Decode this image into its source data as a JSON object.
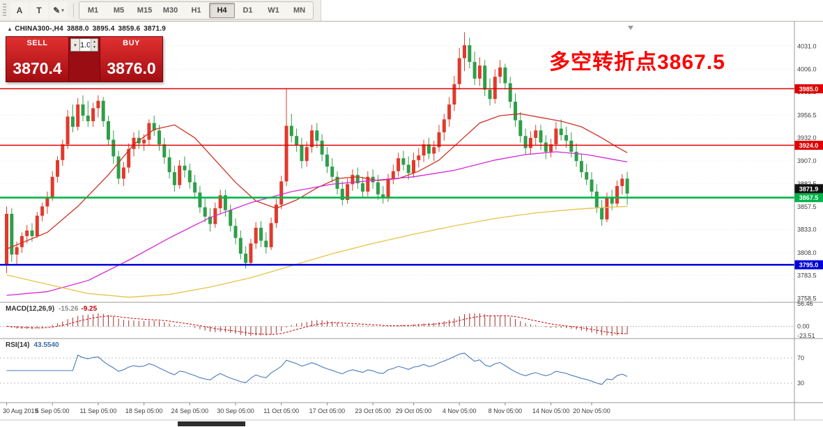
{
  "toolbar": {
    "tool_buttons": [
      {
        "name": "cursor-annotate-button",
        "glyph": "A",
        "dropdown": false
      },
      {
        "name": "text-label-button",
        "glyph": "T",
        "dropdown": false
      },
      {
        "name": "draw-objects-button",
        "glyph": "✎",
        "dropdown": true
      }
    ],
    "timeframes": [
      "M1",
      "M5",
      "M15",
      "M30",
      "H1",
      "H4",
      "D1",
      "W1",
      "MN"
    ],
    "active": "H4"
  },
  "symbol_header": {
    "collapse_icon": "▴",
    "symbol": "CHINA300-,H4",
    "open": "3888.0",
    "high": "3895.4",
    "low": "3859.6",
    "close": "3871.9"
  },
  "trade_panel": {
    "sell_label": "SELL",
    "buy_label": "BUY",
    "volume": "1.00",
    "sell_price": "3870.4",
    "buy_price": "3876.0"
  },
  "annotation": {
    "text": "多空转折点3867.5",
    "color": "#ff0000"
  },
  "chart_data": {
    "type": "candlestick",
    "title": "CHINA300-,H4",
    "colors": {
      "bull": "#e03a2c",
      "bear": "#2f9e49",
      "grid": "#e6e6e6",
      "axis_text": "#3c3c3c"
    },
    "y_range": [
      3756,
      4056
    ],
    "y_ticks": [
      "4031.0",
      "4006.0",
      "3981.5",
      "3956.5",
      "3932.0",
      "3907.0",
      "3882.5",
      "3857.5",
      "3833.0",
      "3808.0",
      "3783.5",
      "3758.5"
    ],
    "hlines": [
      {
        "price": 3985.0,
        "label": "3985.0",
        "color": "#e00000",
        "width": 1.5
      },
      {
        "price": 3924.0,
        "label": "3924.0",
        "color": "#e00000",
        "width": 1.5
      },
      {
        "price": 3867.5,
        "label": "3867.5",
        "color": "#00b44a",
        "width": 2.6
      },
      {
        "price": 3795.0,
        "label": "3795.0",
        "color": "#0000d6",
        "width": 2.6
      }
    ],
    "price_tag": {
      "price": 3871.9,
      "label": "3871.9",
      "color": "#111111"
    },
    "x_labels": [
      {
        "i": 0,
        "label": "30 Aug 2019"
      },
      {
        "i": 9,
        "label": "5 Sep 05:00"
      },
      {
        "i": 18,
        "label": "11 Sep 05:00"
      },
      {
        "i": 27,
        "label": "18 Sep 05:00"
      },
      {
        "i": 36,
        "label": "24 Sep 05:00"
      },
      {
        "i": 45,
        "label": "30 Sep 05:00"
      },
      {
        "i": 54,
        "label": "11 Oct 05:00"
      },
      {
        "i": 63,
        "label": "17 Oct 05:00"
      },
      {
        "i": 72,
        "label": "23 Oct 05:00"
      },
      {
        "i": 80,
        "label": "29 Oct 05:00"
      },
      {
        "i": 89,
        "label": "4 Nov 05:00"
      },
      {
        "i": 98,
        "label": "8 Nov 05:00"
      },
      {
        "i": 107,
        "label": "14 Nov 05:00"
      },
      {
        "i": 115,
        "label": "20 Nov 05:00"
      }
    ],
    "ohlc": [
      [
        3795,
        3858,
        3786,
        3850
      ],
      [
        3850,
        3856,
        3798,
        3806
      ],
      [
        3806,
        3820,
        3796,
        3814
      ],
      [
        3814,
        3830,
        3808,
        3826
      ],
      [
        3826,
        3838,
        3818,
        3832
      ],
      [
        3832,
        3840,
        3820,
        3826
      ],
      [
        3826,
        3852,
        3824,
        3848
      ],
      [
        3848,
        3862,
        3842,
        3858
      ],
      [
        3858,
        3874,
        3850,
        3868
      ],
      [
        3868,
        3896,
        3864,
        3890
      ],
      [
        3890,
        3912,
        3884,
        3908
      ],
      [
        3908,
        3930,
        3902,
        3925
      ],
      [
        3925,
        3962,
        3920,
        3955
      ],
      [
        3955,
        3968,
        3938,
        3944
      ],
      [
        3944,
        3975,
        3940,
        3968
      ],
      [
        3968,
        3978,
        3950,
        3956
      ],
      [
        3956,
        3972,
        3944,
        3950
      ],
      [
        3950,
        3970,
        3944,
        3964
      ],
      [
        3964,
        3978,
        3954,
        3972
      ],
      [
        3972,
        3976,
        3944,
        3950
      ],
      [
        3950,
        3956,
        3924,
        3930
      ],
      [
        3930,
        3940,
        3904,
        3912
      ],
      [
        3912,
        3918,
        3882,
        3888
      ],
      [
        3888,
        3906,
        3880,
        3900
      ],
      [
        3900,
        3926,
        3894,
        3920
      ],
      [
        3920,
        3938,
        3912,
        3932
      ],
      [
        3932,
        3940,
        3920,
        3926
      ],
      [
        3926,
        3936,
        3918,
        3930
      ],
      [
        3930,
        3952,
        3924,
        3948
      ],
      [
        3948,
        3956,
        3934,
        3940
      ],
      [
        3940,
        3946,
        3918,
        3925
      ],
      [
        3925,
        3932,
        3904,
        3911
      ],
      [
        3911,
        3920,
        3888,
        3895
      ],
      [
        3895,
        3902,
        3874,
        3881
      ],
      [
        3881,
        3908,
        3877,
        3902
      ],
      [
        3902,
        3912,
        3889,
        3897
      ],
      [
        3897,
        3904,
        3877,
        3884
      ],
      [
        3884,
        3892,
        3866,
        3873
      ],
      [
        3873,
        3880,
        3851,
        3857
      ],
      [
        3857,
        3868,
        3841,
        3847
      ],
      [
        3847,
        3856,
        3831,
        3839
      ],
      [
        3839,
        3862,
        3835,
        3856
      ],
      [
        3856,
        3876,
        3850,
        3870
      ],
      [
        3870,
        3876,
        3847,
        3854
      ],
      [
        3854,
        3860,
        3831,
        3837
      ],
      [
        3837,
        3845,
        3817,
        3824
      ],
      [
        3824,
        3832,
        3801,
        3807
      ],
      [
        3807,
        3815,
        3791,
        3797
      ],
      [
        3797,
        3823,
        3794,
        3818
      ],
      [
        3818,
        3841,
        3812,
        3835
      ],
      [
        3835,
        3842,
        3814,
        3821
      ],
      [
        3821,
        3830,
        3807,
        3814
      ],
      [
        3814,
        3846,
        3811,
        3840
      ],
      [
        3840,
        3866,
        3835,
        3860
      ],
      [
        3860,
        3891,
        3855,
        3885
      ],
      [
        3885,
        3985,
        3880,
        3945
      ],
      [
        3945,
        3958,
        3927,
        3934
      ],
      [
        3934,
        3942,
        3917,
        3924
      ],
      [
        3924,
        3932,
        3899,
        3907
      ],
      [
        3907,
        3928,
        3901,
        3922
      ],
      [
        3922,
        3946,
        3916,
        3940
      ],
      [
        3940,
        3948,
        3921,
        3929
      ],
      [
        3929,
        3936,
        3907,
        3914
      ],
      [
        3914,
        3922,
        3894,
        3901
      ],
      [
        3901,
        3910,
        3884,
        3890
      ],
      [
        3890,
        3896,
        3871,
        3877
      ],
      [
        3877,
        3885,
        3859,
        3865
      ],
      [
        3865,
        3888,
        3861,
        3882
      ],
      [
        3882,
        3898,
        3875,
        3892
      ],
      [
        3892,
        3900,
        3877,
        3883
      ],
      [
        3883,
        3890,
        3867,
        3874
      ],
      [
        3874,
        3896,
        3869,
        3890
      ],
      [
        3890,
        3898,
        3877,
        3884
      ],
      [
        3884,
        3892,
        3865,
        3871
      ],
      [
        3871,
        3880,
        3861,
        3867
      ],
      [
        3867,
        3893,
        3863,
        3888
      ],
      [
        3888,
        3903,
        3882,
        3896
      ],
      [
        3896,
        3916,
        3890,
        3910
      ],
      [
        3910,
        3918,
        3897,
        3903
      ],
      [
        3903,
        3912,
        3887,
        3894
      ],
      [
        3894,
        3916,
        3889,
        3908
      ],
      [
        3908,
        3921,
        3900,
        3913
      ],
      [
        3913,
        3930,
        3906,
        3925
      ],
      [
        3925,
        3932,
        3909,
        3915
      ],
      [
        3915,
        3929,
        3907,
        3922
      ],
      [
        3922,
        3946,
        3917,
        3938
      ],
      [
        3938,
        3958,
        3929,
        3952
      ],
      [
        3952,
        3976,
        3944,
        3968
      ],
      [
        3968,
        3999,
        3961,
        3990
      ],
      [
        3990,
        4029,
        3984,
        4018
      ],
      [
        4018,
        4046,
        4004,
        4032
      ],
      [
        4032,
        4040,
        4007,
        4014
      ],
      [
        4014,
        4025,
        3989,
        3996
      ],
      [
        3996,
        4019,
        3988,
        4010
      ],
      [
        4010,
        4016,
        3977,
        3984
      ],
      [
        3984,
        3996,
        3967,
        3974
      ],
      [
        3974,
        4006,
        3969,
        3998
      ],
      [
        3998,
        4016,
        3991,
        4008
      ],
      [
        4008,
        4012,
        3984,
        3991
      ],
      [
        3991,
        3998,
        3964,
        3971
      ],
      [
        3971,
        3980,
        3944,
        3951
      ],
      [
        3951,
        3960,
        3927,
        3934
      ],
      [
        3934,
        3942,
        3914,
        3921
      ],
      [
        3921,
        3939,
        3915,
        3932
      ],
      [
        3932,
        3946,
        3924,
        3940
      ],
      [
        3940,
        3946,
        3919,
        3927
      ],
      [
        3927,
        3935,
        3909,
        3917
      ],
      [
        3917,
        3931,
        3911,
        3925
      ],
      [
        3925,
        3949,
        3919,
        3942
      ],
      [
        3942,
        3952,
        3929,
        3935
      ],
      [
        3935,
        3944,
        3921,
        3929
      ],
      [
        3929,
        3938,
        3911,
        3917
      ],
      [
        3917,
        3926,
        3901,
        3907
      ],
      [
        3907,
        3915,
        3889,
        3895
      ],
      [
        3895,
        3904,
        3881,
        3887
      ],
      [
        3887,
        3895,
        3867,
        3874
      ],
      [
        3874,
        3882,
        3851,
        3857
      ],
      [
        3857,
        3865,
        3837,
        3844
      ],
      [
        3844,
        3873,
        3841,
        3867
      ],
      [
        3867,
        3876,
        3854,
        3861
      ],
      [
        3861,
        3886,
        3857,
        3880
      ],
      [
        3880,
        3893,
        3871,
        3888
      ],
      [
        3888,
        3895.4,
        3859.6,
        3871.9
      ]
    ],
    "moving_averages": [
      {
        "name": "ma-fast-red",
        "color": "#cc3322",
        "points": [
          [
            0,
            3812
          ],
          [
            8,
            3830
          ],
          [
            14,
            3858
          ],
          [
            20,
            3892
          ],
          [
            25,
            3925
          ],
          [
            29,
            3941
          ],
          [
            33,
            3946
          ],
          [
            37,
            3932
          ],
          [
            41,
            3908
          ],
          [
            45,
            3884
          ],
          [
            49,
            3864
          ],
          [
            53,
            3856
          ],
          [
            57,
            3865
          ],
          [
            61,
            3878
          ],
          [
            65,
            3888
          ],
          [
            69,
            3890
          ],
          [
            73,
            3886
          ],
          [
            77,
            3888
          ],
          [
            81,
            3896
          ],
          [
            85,
            3908
          ],
          [
            89,
            3928
          ],
          [
            93,
            3948
          ],
          [
            97,
            3956
          ],
          [
            101,
            3958
          ],
          [
            105,
            3954
          ],
          [
            109,
            3950
          ],
          [
            113,
            3944
          ],
          [
            117,
            3932
          ],
          [
            120,
            3922
          ],
          [
            122,
            3916
          ]
        ]
      },
      {
        "name": "ma-mid-magenta",
        "color": "#d428d4",
        "points": [
          [
            0,
            3762
          ],
          [
            8,
            3766
          ],
          [
            16,
            3778
          ],
          [
            24,
            3800
          ],
          [
            32,
            3824
          ],
          [
            40,
            3846
          ],
          [
            48,
            3862
          ],
          [
            56,
            3874
          ],
          [
            64,
            3882
          ],
          [
            72,
            3886
          ],
          [
            80,
            3890
          ],
          [
            88,
            3897
          ],
          [
            96,
            3908
          ],
          [
            102,
            3914
          ],
          [
            108,
            3917
          ],
          [
            114,
            3914
          ],
          [
            118,
            3910
          ],
          [
            122,
            3906
          ]
        ]
      },
      {
        "name": "ma-slow-yellow",
        "color": "#e6c348",
        "points": [
          [
            0,
            3784
          ],
          [
            8,
            3774
          ],
          [
            16,
            3764
          ],
          [
            24,
            3760
          ],
          [
            32,
            3763
          ],
          [
            40,
            3771
          ],
          [
            48,
            3781
          ],
          [
            56,
            3794
          ],
          [
            64,
            3807
          ],
          [
            72,
            3818
          ],
          [
            80,
            3828
          ],
          [
            88,
            3837
          ],
          [
            96,
            3845
          ],
          [
            104,
            3851
          ],
          [
            112,
            3855
          ],
          [
            118,
            3857
          ],
          [
            122,
            3858
          ]
        ]
      }
    ],
    "indicators": [
      {
        "type": "macd",
        "label": "MACD(12,26,9)",
        "value1": "-15.26",
        "value2": "-9.25",
        "params": [
          12,
          26,
          9
        ],
        "axis": [
          56.46,
          0,
          -23.51
        ],
        "axis_labels": [
          "56.46",
          "0.00",
          "-23.51"
        ],
        "hist_color": "#a03030",
        "signal_color": "#cc0000"
      },
      {
        "type": "rsi",
        "label": "RSI(14)",
        "value": "43.5540",
        "period": 14,
        "levels": [
          70,
          30
        ],
        "level_labels": [
          "70",
          "30"
        ],
        "line_color": "#4979b8"
      }
    ]
  }
}
